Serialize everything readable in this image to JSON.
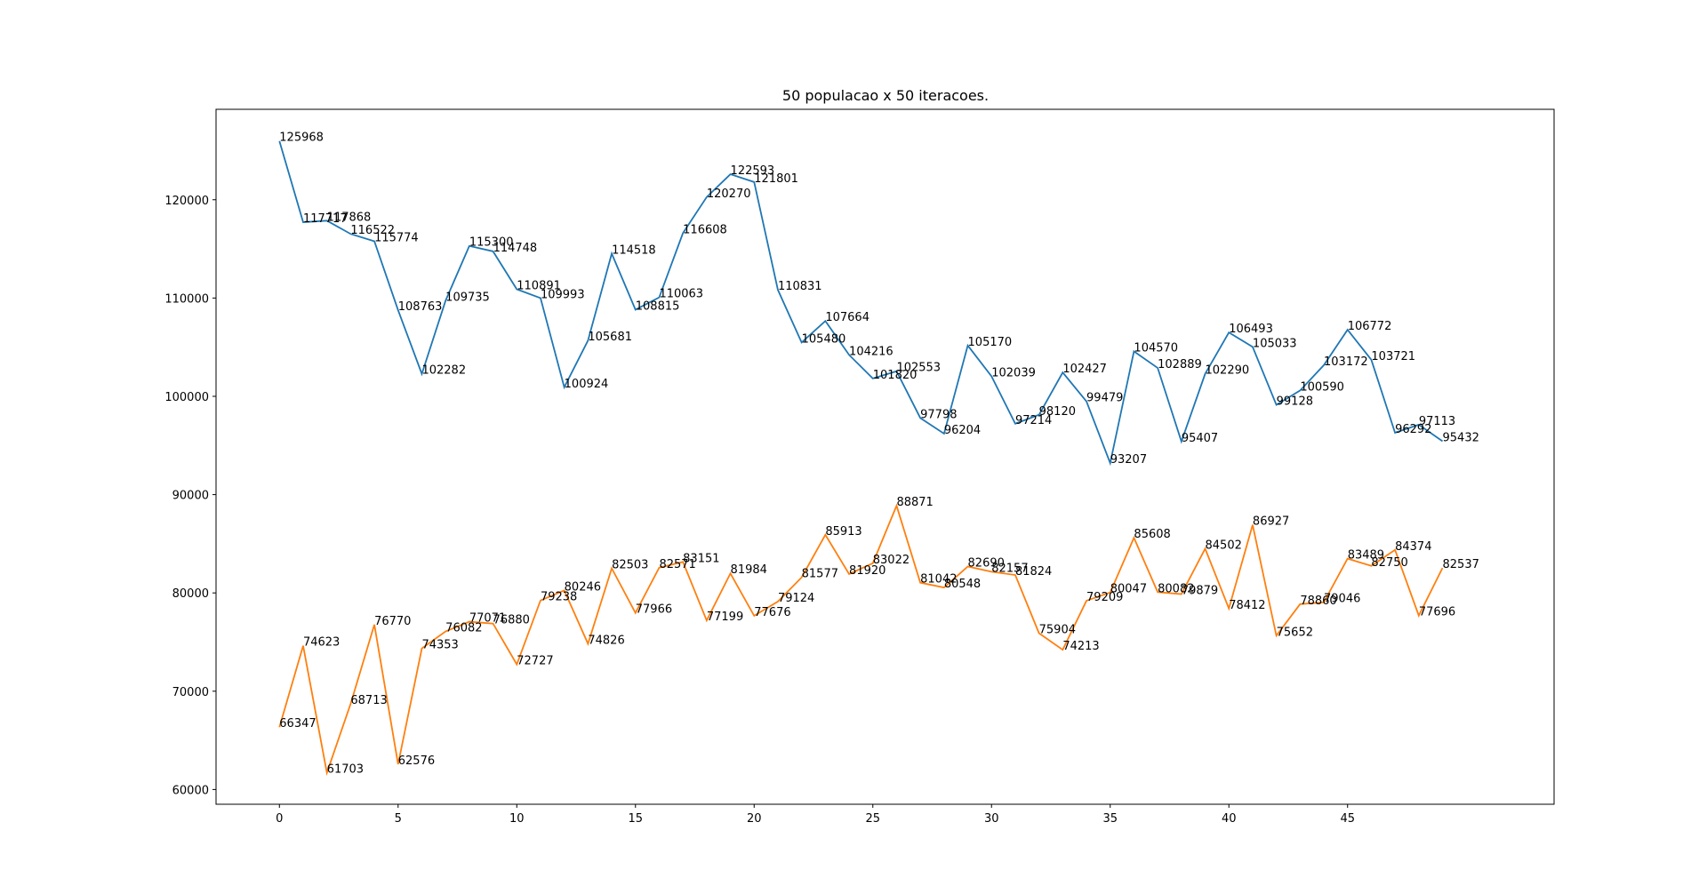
{
  "chart_data": {
    "type": "line",
    "title": "50 populacao x 50 iteracoes.",
    "x": [
      0,
      1,
      2,
      3,
      4,
      5,
      6,
      7,
      8,
      9,
      10,
      11,
      12,
      13,
      14,
      15,
      16,
      17,
      18,
      19,
      20,
      21,
      22,
      23,
      24,
      25,
      26,
      27,
      28,
      29,
      30,
      31,
      32,
      33,
      34,
      35,
      36,
      37,
      38,
      39,
      40,
      41,
      42,
      43,
      44,
      45,
      46,
      47,
      48,
      49
    ],
    "series": [
      {
        "color": "#1f77b4",
        "values": [
          125968,
          117717,
          117868,
          116522,
          115774,
          108763,
          102282,
          109735,
          115300,
          114748,
          110891,
          109993,
          100924,
          105681,
          114518,
          108815,
          110063,
          116608,
          120270,
          122593,
          121801,
          110831,
          105480,
          107664,
          104216,
          101820,
          102553,
          97798,
          96204,
          105170,
          102039,
          97214,
          98120,
          102427,
          99479,
          93207,
          104570,
          102889,
          95407,
          102290,
          106493,
          105033,
          99128,
          100590,
          103172,
          106772,
          103721,
          96292,
          97113,
          95432
        ]
      },
      {
        "color": "#ff7f0e",
        "values": [
          66347,
          74623,
          61703,
          68713,
          76770,
          62576,
          74353,
          76082,
          77071,
          76880,
          72727,
          79238,
          80246,
          74826,
          82503,
          77966,
          82571,
          83151,
          77199,
          81984,
          77676,
          79124,
          81577,
          85913,
          81920,
          83022,
          88871,
          81042,
          80548,
          82690,
          82157,
          81824,
          75904,
          74213,
          79209,
          80047,
          85608,
          80082,
          79879,
          84502,
          78412,
          86927,
          75652,
          78860,
          79046,
          83489,
          82750,
          84374,
          77696,
          82537
        ]
      }
    ],
    "xlim": [
      -2.67,
      53.7
    ],
    "xticks": [
      0,
      5,
      10,
      15,
      20,
      25,
      30,
      35,
      40,
      45
    ],
    "ylim": [
      58500,
      129200
    ],
    "yticks": [
      60000,
      70000,
      80000,
      90000,
      100000,
      110000,
      120000
    ]
  }
}
